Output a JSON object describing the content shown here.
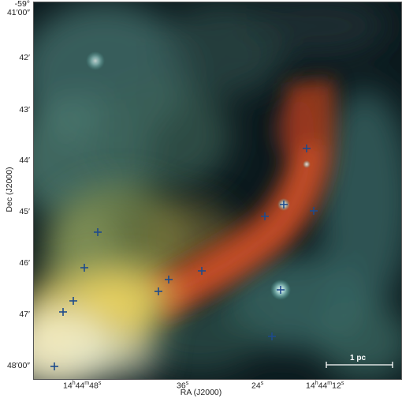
{
  "axes": {
    "y_title": "Dec (J2000)",
    "x_title": "RA (J2000)",
    "y_ticks": [
      {
        "top": "-59°",
        "bottom": "41′00″"
      },
      {
        "bottom": "42′"
      },
      {
        "bottom": "43′"
      },
      {
        "bottom": "44′"
      },
      {
        "bottom": "45′"
      },
      {
        "bottom": "46′"
      },
      {
        "bottom": "47′"
      },
      {
        "bottom": "48′00″"
      }
    ],
    "x_ticks": [
      {
        "h": "14",
        "hs": "h",
        "m": "44",
        "ms": "m",
        "s": "48",
        "ss": "s"
      },
      {
        "s": "36",
        "ss": "s"
      },
      {
        "s": "24",
        "ss": "s"
      },
      {
        "h": "14",
        "hs": "h",
        "m": "44",
        "ms": "m",
        "s": "12",
        "ss": "s"
      }
    ]
  },
  "scale_bar": {
    "label": "1 pc"
  },
  "colors": {
    "background": "#0b1c20",
    "ridge": "#c9461f",
    "yellow_glow": "#f2e27a",
    "teal_nebula": "#4f8277",
    "marker": "#1e4b8c"
  },
  "markers_count_visible": 16
}
